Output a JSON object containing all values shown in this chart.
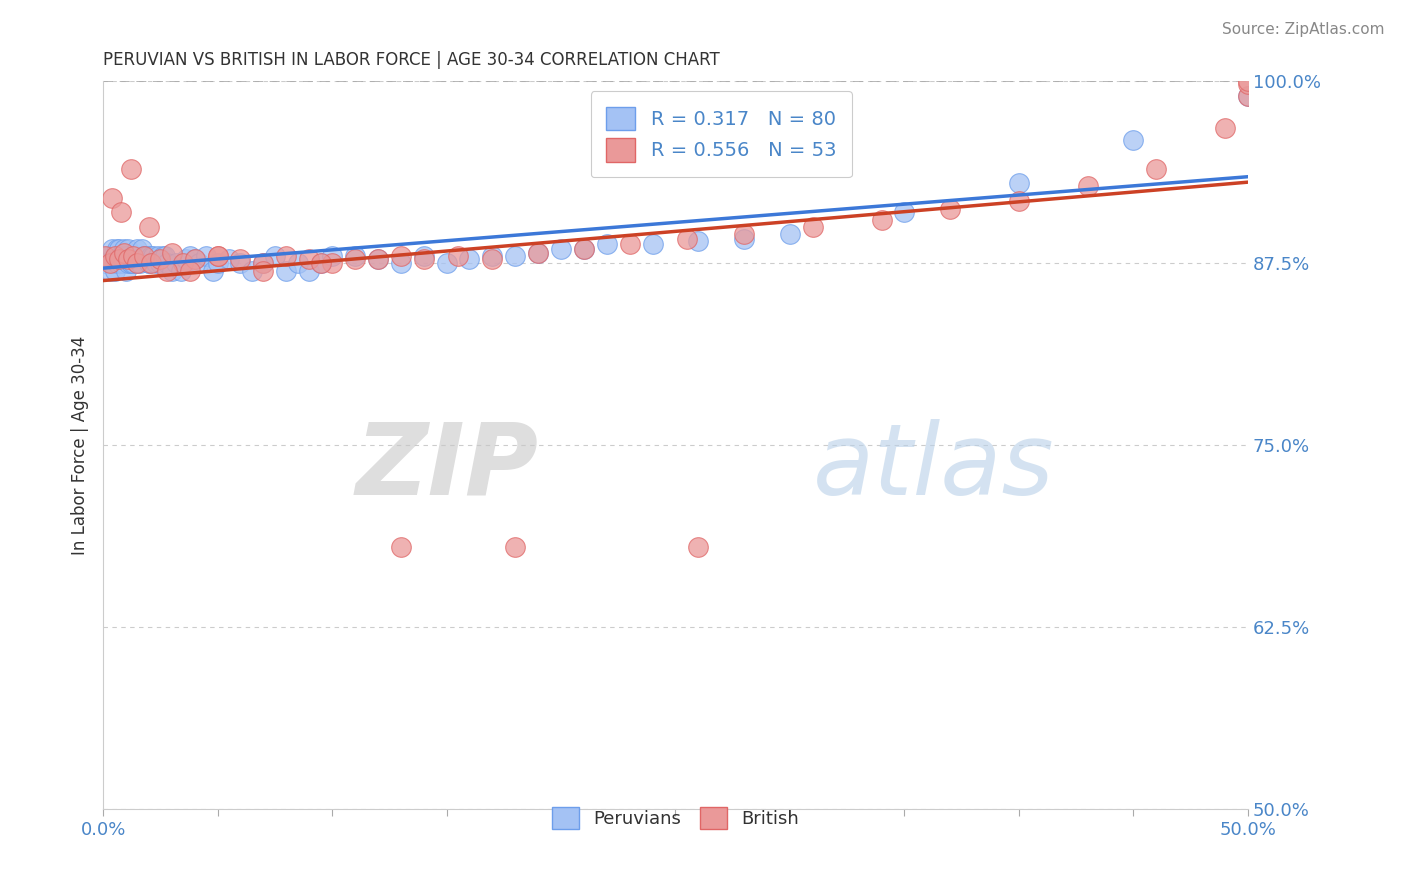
{
  "title": "PERUVIAN VS BRITISH IN LABOR FORCE | AGE 30-34 CORRELATION CHART",
  "xlabel": "",
  "ylabel": "In Labor Force | Age 30-34",
  "xlim": [
    0.0,
    0.5
  ],
  "ylim": [
    0.5,
    1.0
  ],
  "xticks": [
    0.0,
    0.05,
    0.1,
    0.15,
    0.2,
    0.25,
    0.3,
    0.35,
    0.4,
    0.45,
    0.5
  ],
  "yticks": [
    0.5,
    0.625,
    0.75,
    0.875,
    1.0
  ],
  "yticklabels": [
    "50.0%",
    "62.5%",
    "75.0%",
    "87.5%",
    "100.0%"
  ],
  "peruvian_color": "#a4c2f4",
  "british_color": "#ea9999",
  "peruvian_edge_color": "#6d9eeb",
  "british_edge_color": "#e06666",
  "peruvian_line_color": "#3c78d8",
  "british_line_color": "#cc4125",
  "R_peruvian": 0.317,
  "N_peruvian": 80,
  "R_british": 0.556,
  "N_british": 53,
  "source_text": "Source: ZipAtlas.com",
  "watermark_zip": "ZIP",
  "watermark_atlas": "atlas",
  "background_color": "#ffffff",
  "peruvian_x": [
    0.001,
    0.002,
    0.003,
    0.004,
    0.004,
    0.005,
    0.005,
    0.006,
    0.006,
    0.007,
    0.007,
    0.008,
    0.008,
    0.009,
    0.009,
    0.01,
    0.01,
    0.011,
    0.011,
    0.012,
    0.012,
    0.013,
    0.013,
    0.014,
    0.015,
    0.015,
    0.016,
    0.017,
    0.018,
    0.019,
    0.02,
    0.02,
    0.021,
    0.022,
    0.023,
    0.024,
    0.025,
    0.026,
    0.027,
    0.028,
    0.03,
    0.032,
    0.034,
    0.036,
    0.038,
    0.04,
    0.042,
    0.045,
    0.048,
    0.05,
    0.055,
    0.06,
    0.065,
    0.07,
    0.075,
    0.08,
    0.085,
    0.09,
    0.095,
    0.1,
    0.11,
    0.12,
    0.13,
    0.14,
    0.15,
    0.16,
    0.17,
    0.18,
    0.19,
    0.2,
    0.21,
    0.22,
    0.24,
    0.26,
    0.28,
    0.3,
    0.35,
    0.4,
    0.45,
    0.5
  ],
  "peruvian_y": [
    0.875,
    0.88,
    0.87,
    0.875,
    0.885,
    0.87,
    0.88,
    0.875,
    0.885,
    0.88,
    0.885,
    0.875,
    0.88,
    0.875,
    0.885,
    0.87,
    0.88,
    0.875,
    0.885,
    0.875,
    0.875,
    0.88,
    0.875,
    0.88,
    0.875,
    0.885,
    0.875,
    0.885,
    0.88,
    0.88,
    0.875,
    0.875,
    0.88,
    0.88,
    0.875,
    0.88,
    0.875,
    0.88,
    0.88,
    0.875,
    0.87,
    0.875,
    0.87,
    0.878,
    0.88,
    0.878,
    0.875,
    0.88,
    0.87,
    0.875,
    0.878,
    0.875,
    0.87,
    0.875,
    0.88,
    0.87,
    0.875,
    0.87,
    0.875,
    0.88,
    0.88,
    0.878,
    0.875,
    0.88,
    0.875,
    0.878,
    0.88,
    0.88,
    0.882,
    0.885,
    0.885,
    0.888,
    0.888,
    0.89,
    0.892,
    0.895,
    0.91,
    0.93,
    0.96,
    0.99
  ],
  "british_x": [
    0.001,
    0.003,
    0.005,
    0.007,
    0.009,
    0.011,
    0.013,
    0.015,
    0.018,
    0.021,
    0.025,
    0.03,
    0.035,
    0.04,
    0.05,
    0.06,
    0.07,
    0.08,
    0.09,
    0.1,
    0.11,
    0.12,
    0.13,
    0.14,
    0.155,
    0.17,
    0.19,
    0.21,
    0.23,
    0.255,
    0.28,
    0.31,
    0.34,
    0.37,
    0.4,
    0.43,
    0.46,
    0.49,
    0.5,
    0.5,
    0.5,
    0.004,
    0.008,
    0.012,
    0.02,
    0.028,
    0.038,
    0.05,
    0.07,
    0.095,
    0.13,
    0.18,
    0.26
  ],
  "british_y": [
    0.88,
    0.875,
    0.88,
    0.878,
    0.882,
    0.878,
    0.88,
    0.875,
    0.88,
    0.875,
    0.878,
    0.882,
    0.875,
    0.878,
    0.88,
    0.878,
    0.875,
    0.88,
    0.878,
    0.875,
    0.878,
    0.878,
    0.88,
    0.878,
    0.88,
    0.878,
    0.882,
    0.885,
    0.888,
    0.892,
    0.895,
    0.9,
    0.905,
    0.912,
    0.918,
    0.928,
    0.94,
    0.968,
    0.99,
    0.998,
    1.0,
    0.92,
    0.91,
    0.94,
    0.9,
    0.87,
    0.87,
    0.88,
    0.87,
    0.875,
    0.68,
    0.68,
    0.68
  ]
}
